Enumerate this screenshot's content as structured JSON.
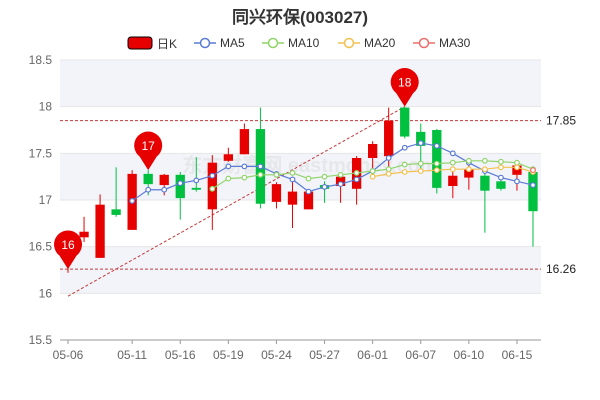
{
  "title": "同兴环保(003027)",
  "legend": [
    {
      "name": "日K",
      "color": "#e60000",
      "kind": "box"
    },
    {
      "name": "MA5",
      "color": "#5b7bd5",
      "kind": "ring"
    },
    {
      "name": "MA10",
      "color": "#8fd468",
      "kind": "ring"
    },
    {
      "name": "MA20",
      "color": "#f2c14e",
      "kind": "ring"
    },
    {
      "name": "MA30",
      "color": "#ef6b6b",
      "kind": "ring"
    }
  ],
  "watermark": "东方财富网 eastmoney.com",
  "colors": {
    "up": "#e60000",
    "down": "#00c040",
    "grid": "#e6e6e6",
    "band": "#f2f4fa"
  },
  "chart_data": {
    "type": "candlestick",
    "ylim": [
      15.5,
      18.5
    ],
    "yticks": [
      15.5,
      16,
      16.5,
      17,
      17.5,
      18,
      18.5
    ],
    "x_ticks": [
      "05-06",
      "05-11",
      "05-16",
      "05-19",
      "05-24",
      "05-27",
      "06-01",
      "06-07",
      "06-10",
      "06-15"
    ],
    "candles": [
      {
        "date": "05-06",
        "o": 16.38,
        "c": 16.47,
        "h": 16.5,
        "l": 16.22
      },
      {
        "date": "05-07",
        "o": 16.6,
        "c": 16.66,
        "h": 16.82,
        "l": 16.55
      },
      {
        "date": "05-08",
        "o": 16.38,
        "c": 16.95,
        "h": 17.06,
        "l": 16.38
      },
      {
        "date": "05-10",
        "o": 16.9,
        "c": 16.84,
        "h": 17.35,
        "l": 16.82
      },
      {
        "date": "05-11",
        "o": 16.68,
        "c": 17.28,
        "h": 17.32,
        "l": 16.68
      },
      {
        "date": "05-12",
        "o": 17.28,
        "c": 17.17,
        "h": 17.32,
        "l": 17.05
      },
      {
        "date": "05-13",
        "o": 17.16,
        "c": 17.27,
        "h": 17.28,
        "l": 17.05
      },
      {
        "date": "05-16",
        "o": 17.27,
        "c": 17.02,
        "h": 17.3,
        "l": 16.79
      },
      {
        "date": "05-17",
        "o": 17.13,
        "c": 17.11,
        "h": 17.46,
        "l": 17.09
      },
      {
        "date": "05-18",
        "o": 16.9,
        "c": 17.4,
        "h": 17.48,
        "l": 16.68
      },
      {
        "date": "05-19",
        "o": 17.42,
        "c": 17.49,
        "h": 17.56,
        "l": 17.41
      },
      {
        "date": "05-20",
        "o": 17.49,
        "c": 17.76,
        "h": 17.82,
        "l": 17.49
      },
      {
        "date": "05-23",
        "o": 17.76,
        "c": 16.96,
        "h": 17.99,
        "l": 16.91
      },
      {
        "date": "05-24",
        "o": 16.98,
        "c": 17.17,
        "h": 17.19,
        "l": 16.91
      },
      {
        "date": "05-25",
        "o": 16.95,
        "c": 17.09,
        "h": 17.25,
        "l": 16.7
      },
      {
        "date": "05-26",
        "o": 16.9,
        "c": 17.09,
        "h": 17.1,
        "l": 16.9
      },
      {
        "date": "05-27",
        "o": 17.16,
        "c": 17.12,
        "h": 17.2,
        "l": 16.97
      },
      {
        "date": "05-30",
        "o": 17.15,
        "c": 17.25,
        "h": 17.3,
        "l": 16.97
      },
      {
        "date": "05-31",
        "o": 17.12,
        "c": 17.45,
        "h": 17.47,
        "l": 16.95
      },
      {
        "date": "06-01",
        "o": 17.45,
        "c": 17.6,
        "h": 17.63,
        "l": 17.28
      },
      {
        "date": "06-02",
        "o": 17.47,
        "c": 17.85,
        "h": 17.99,
        "l": 17.32
      },
      {
        "date": "06-06",
        "o": 17.99,
        "c": 17.68,
        "h": 18.0,
        "l": 17.66
      },
      {
        "date": "06-07",
        "o": 17.73,
        "c": 17.58,
        "h": 17.82,
        "l": 17.32
      },
      {
        "date": "06-08",
        "o": 17.75,
        "c": 17.13,
        "h": 17.76,
        "l": 17.07
      },
      {
        "date": "06-09",
        "o": 17.15,
        "c": 17.26,
        "h": 17.3,
        "l": 17.02
      },
      {
        "date": "06-10",
        "o": 17.24,
        "c": 17.33,
        "h": 17.4,
        "l": 17.11
      },
      {
        "date": "06-13",
        "o": 17.26,
        "c": 17.1,
        "h": 17.29,
        "l": 16.65
      },
      {
        "date": "06-14",
        "o": 17.2,
        "c": 17.12,
        "h": 17.25,
        "l": 17.1
      },
      {
        "date": "06-15",
        "o": 17.27,
        "c": 17.37,
        "h": 17.4,
        "l": 17.1
      },
      {
        "date": "06-16",
        "o": 17.3,
        "c": 16.88,
        "h": 17.35,
        "l": 16.5
      }
    ],
    "ma5": [
      null,
      null,
      null,
      null,
      16.99,
      17.11,
      17.11,
      17.18,
      17.21,
      17.26,
      17.36,
      17.36,
      17.36,
      17.28,
      17.22,
      17.09,
      17.14,
      17.17,
      17.22,
      17.31,
      17.45,
      17.56,
      17.61,
      17.58,
      17.5,
      17.4,
      17.31,
      17.24,
      17.2,
      17.16
    ],
    "ma10": [
      null,
      null,
      null,
      null,
      null,
      null,
      null,
      null,
      null,
      17.12,
      17.23,
      17.24,
      17.27,
      17.27,
      17.29,
      17.23,
      17.25,
      17.27,
      17.29,
      17.31,
      17.33,
      17.38,
      17.39,
      17.39,
      17.4,
      17.42,
      17.42,
      17.41,
      17.4,
      17.33
    ],
    "ma20": [
      null,
      null,
      null,
      null,
      null,
      null,
      null,
      null,
      null,
      null,
      null,
      null,
      null,
      null,
      null,
      null,
      null,
      null,
      null,
      17.25,
      17.28,
      17.3,
      17.31,
      17.32,
      17.33,
      17.33,
      17.33,
      17.35,
      17.35,
      17.3
    ],
    "ma30": [
      null,
      null,
      null,
      null,
      null,
      null,
      null,
      null,
      null,
      null,
      null,
      null,
      null,
      null,
      null,
      null,
      null,
      null,
      null,
      null,
      null,
      null,
      null,
      null,
      null,
      null,
      null,
      null,
      null,
      17.32
    ],
    "reference_lines": [
      17.85,
      16.26
    ],
    "markers": [
      {
        "label": "16",
        "index": 0,
        "value": 16.26
      },
      {
        "label": "17",
        "index": 5,
        "value": 17.32
      },
      {
        "label": "18",
        "index": 21,
        "value": 18.0
      }
    ],
    "trend_line": {
      "from_index": 0,
      "from_value": 15.97,
      "to_index": 21,
      "to_value": 18.0
    }
  }
}
